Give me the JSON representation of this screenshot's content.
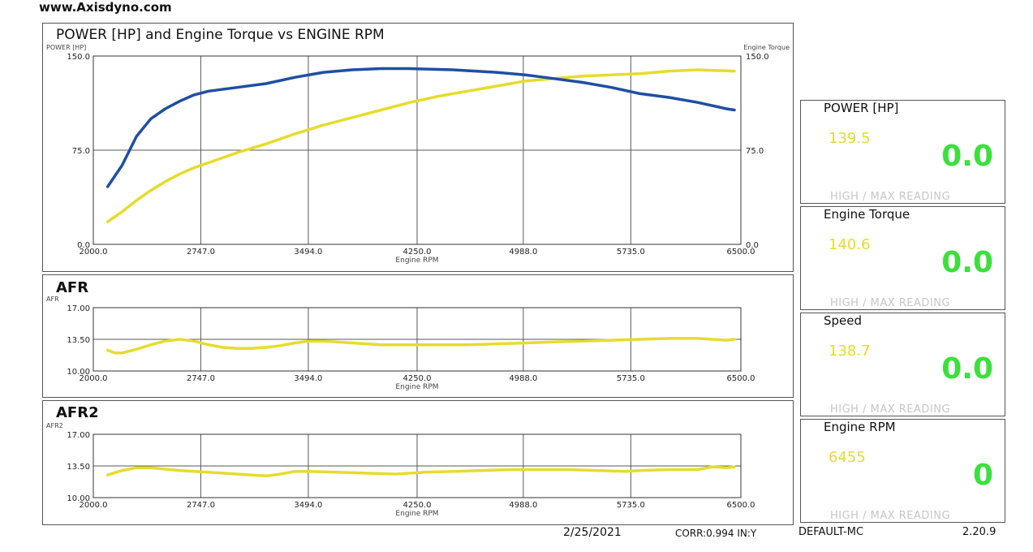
{
  "site": "www.Axisdyno.com",
  "colors": {
    "power": "#1f4ea3",
    "torque": "#e6dc2c",
    "afr": "#e6dc2c",
    "grid": "#5a5a5a",
    "gauge_max": "#e6dc2c",
    "gauge_current": "#3be03b"
  },
  "chart_data": [
    {
      "id": "power-torque",
      "type": "line",
      "title": "POWER [HP] and Engine Torque vs ENGINE RPM",
      "ylabel_left": "POWER [HP]",
      "ylabel_right": "Engine Torque",
      "xlabel": "Engine RPM",
      "xlim": [
        2000,
        6500
      ],
      "ylim": [
        0,
        150
      ],
      "xticks": [
        "2000.0",
        "2747.0",
        "3494.0",
        "4250.0",
        "4988.0",
        "5735.0",
        "6500.0"
      ],
      "yticks_left": [
        "0.0",
        "75.0",
        "150.0"
      ],
      "yticks_right": [
        "0.0",
        "75.0",
        "150.0"
      ],
      "grid": true,
      "series": [
        {
          "name": "POWER [HP]",
          "color": "#1f4ea3",
          "x": [
            2100,
            2200,
            2300,
            2400,
            2500,
            2600,
            2700,
            2800,
            3000,
            3200,
            3400,
            3600,
            3800,
            4000,
            4200,
            4500,
            4800,
            5000,
            5200,
            5400,
            5600,
            5800,
            6000,
            6200,
            6400,
            6455
          ],
          "y": [
            46,
            63,
            86,
            100,
            108,
            114,
            119,
            122,
            125,
            128,
            133,
            137,
            139,
            140,
            140,
            139,
            137,
            135,
            132,
            129,
            125,
            120,
            117,
            113,
            108,
            107
          ]
        },
        {
          "name": "Engine Torque",
          "color": "#e6dc2c",
          "x": [
            2100,
            2200,
            2300,
            2400,
            2500,
            2600,
            2700,
            2800,
            3000,
            3200,
            3400,
            3600,
            3800,
            4000,
            4200,
            4400,
            4600,
            4800,
            5000,
            5200,
            5400,
            5600,
            5800,
            6000,
            6200,
            6455
          ],
          "y": [
            18,
            26,
            35,
            43,
            50,
            56,
            61,
            65,
            73,
            80,
            88,
            95,
            101,
            107,
            113,
            118,
            122,
            126,
            130,
            132,
            134,
            135,
            136,
            138,
            139,
            138
          ]
        }
      ]
    },
    {
      "id": "afr",
      "type": "line",
      "title": "AFR",
      "ylabel_left": "AFR",
      "xlabel": "Engine RPM",
      "xlim": [
        2000,
        6500
      ],
      "ylim": [
        10,
        17
      ],
      "xticks": [
        "2000.0",
        "2747.0",
        "3494.0",
        "4250.0",
        "4988.0",
        "5735.0",
        "6500.0"
      ],
      "yticks_left": [
        "10.00",
        "13.50",
        "17.00"
      ],
      "grid": true,
      "series": [
        {
          "name": "AFR",
          "color": "#e6dc2c",
          "x": [
            2100,
            2150,
            2200,
            2300,
            2400,
            2500,
            2600,
            2700,
            2800,
            2900,
            3000,
            3100,
            3200,
            3300,
            3400,
            3500,
            3600,
            3800,
            4000,
            4200,
            4400,
            4600,
            4800,
            5000,
            5200,
            5400,
            5600,
            5800,
            6000,
            6200,
            6300,
            6400,
            6455
          ],
          "y": [
            12.3,
            12.0,
            12.0,
            12.4,
            12.9,
            13.3,
            13.5,
            13.3,
            12.9,
            12.6,
            12.5,
            12.5,
            12.6,
            12.8,
            13.1,
            13.3,
            13.3,
            13.1,
            12.9,
            12.9,
            12.9,
            12.9,
            13.0,
            13.1,
            13.2,
            13.3,
            13.4,
            13.5,
            13.6,
            13.6,
            13.5,
            13.4,
            13.5
          ]
        }
      ]
    },
    {
      "id": "afr2",
      "type": "line",
      "title": "AFR2",
      "ylabel_left": "AFR2",
      "xlabel": "Engine RPM",
      "xlim": [
        2000,
        6500
      ],
      "ylim": [
        10,
        17
      ],
      "xticks": [
        "2000.0",
        "2747.0",
        "3494.0",
        "4250.0",
        "4988.0",
        "5735.0",
        "6500.0"
      ],
      "yticks_left": [
        "10.00",
        "13.50",
        "17.00"
      ],
      "grid": true,
      "series": [
        {
          "name": "AFR2",
          "color": "#e6dc2c",
          "x": [
            2100,
            2200,
            2300,
            2400,
            2600,
            2800,
            3000,
            3200,
            3300,
            3400,
            3500,
            3700,
            3900,
            4100,
            4300,
            4500,
            4700,
            4900,
            5100,
            5300,
            5500,
            5700,
            5800,
            6000,
            6200,
            6300,
            6400,
            6455
          ],
          "y": [
            12.5,
            13.0,
            13.3,
            13.3,
            13.0,
            12.8,
            12.6,
            12.4,
            12.6,
            12.9,
            12.9,
            12.8,
            12.7,
            12.6,
            12.8,
            12.9,
            13.0,
            13.1,
            13.1,
            13.1,
            13.0,
            12.9,
            13.0,
            13.1,
            13.1,
            13.4,
            13.3,
            13.4
          ]
        }
      ]
    }
  ],
  "gauges": [
    {
      "title": "POWER [HP]",
      "max": "139.5",
      "current": "0.0",
      "footer": "HIGH / MAX READING"
    },
    {
      "title": "Engine Torque",
      "max": "140.6",
      "current": "0.0",
      "footer": "HIGH / MAX READING"
    },
    {
      "title": "Speed",
      "max": "138.7",
      "current": "0.0",
      "footer": "HIGH / MAX READING"
    },
    {
      "title": "Engine RPM",
      "max": "6455",
      "current": "0",
      "footer": "HIGH / MAX READING"
    }
  ],
  "footer": {
    "date": "2/25/2021",
    "corr": "CORR:0.994 IN:Y",
    "profile": "DEFAULT-MC",
    "version": "2.20.9"
  }
}
